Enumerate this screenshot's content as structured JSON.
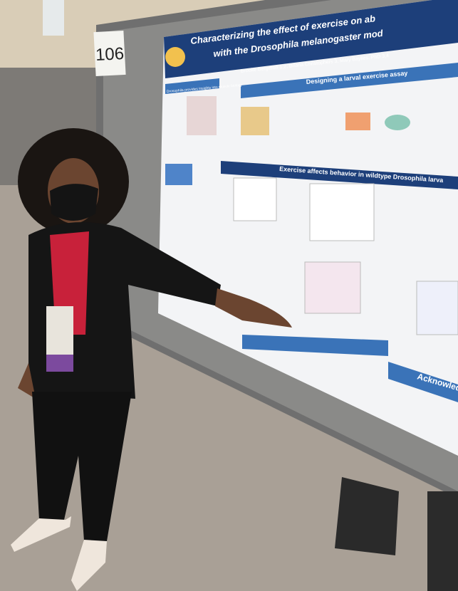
{
  "board_number": "106",
  "poster": {
    "title_line1": "Characterizing the effect of exercise on ab",
    "title_line2": "with the Drosophila melanogaster mod",
    "authors": "Brooke Bergeron 1,2, Briana Christophers 3, Mary Baylies, PhD 3,4",
    "sections": [
      "Drosophila provides insights into muscle biology",
      "Designing a larval exercise assay",
      "Exercise affects behavior in wildtype Drosophila larva",
      "Acknowled"
    ]
  }
}
